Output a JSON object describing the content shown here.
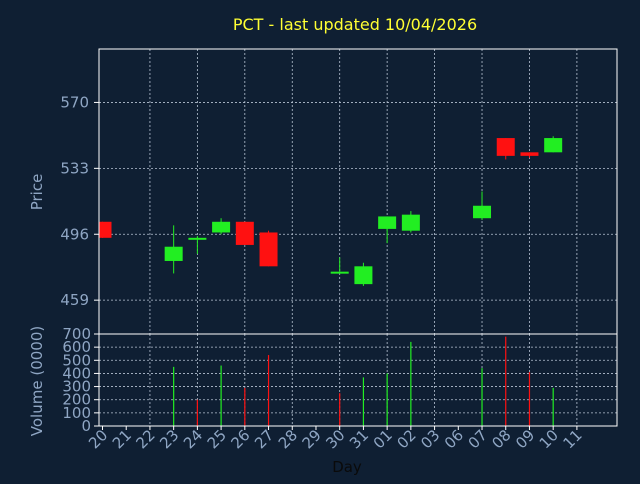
{
  "colors": {
    "background": "#0f1f33",
    "axis": "#ffffff",
    "grid": "#b8c4d4",
    "title": "#ffff33",
    "label": "#8fa6c4",
    "up": "#22ee22",
    "down": "#ff1111"
  },
  "chart_data": [
    {
      "type": "candlestick",
      "title": "PCT - last updated 10/04/2026",
      "ylabel": "Price",
      "ylim": [
        440,
        600
      ],
      "yticks": [
        459,
        496,
        533,
        570
      ],
      "grid": true,
      "categories": [
        "20",
        "21",
        "22",
        "23",
        "24",
        "25",
        "26",
        "27",
        "28",
        "29",
        "30",
        "31",
        "01",
        "02",
        "03",
        "06",
        "07",
        "08",
        "09",
        "10",
        "11"
      ],
      "candles": [
        {
          "x": "20",
          "open": 503,
          "high": 503,
          "low": 494,
          "close": 494
        },
        {
          "x": "23",
          "open": 481,
          "high": 501,
          "low": 474,
          "close": 489
        },
        {
          "x": "24",
          "open": 494,
          "high": 495,
          "low": 485,
          "close": 494
        },
        {
          "x": "25",
          "open": 497,
          "high": 505,
          "low": 496,
          "close": 503
        },
        {
          "x": "26",
          "open": 503,
          "high": 503,
          "low": 490,
          "close": 490
        },
        {
          "x": "27",
          "open": 497,
          "high": 498,
          "low": 478,
          "close": 478
        },
        {
          "x": "30",
          "open": 475,
          "high": 483,
          "low": 475,
          "close": 475
        },
        {
          "x": "31",
          "open": 468,
          "high": 480,
          "low": 467,
          "close": 478
        },
        {
          "x": "01",
          "open": 499,
          "high": 506,
          "low": 491,
          "close": 506
        },
        {
          "x": "02",
          "open": 498,
          "high": 509,
          "low": 497,
          "close": 507
        },
        {
          "x": "07",
          "open": 505,
          "high": 520,
          "low": 504,
          "close": 512
        },
        {
          "x": "08",
          "open": 550,
          "high": 550,
          "low": 538,
          "close": 540
        },
        {
          "x": "09",
          "open": 542,
          "high": 542,
          "low": 539,
          "close": 540
        },
        {
          "x": "10",
          "open": 542,
          "high": 551,
          "low": 542,
          "close": 550
        }
      ]
    },
    {
      "type": "bar",
      "ylabel": "Volume (0000)",
      "xlabel": "Day",
      "ylim": [
        0,
        700
      ],
      "yticks": [
        0,
        100,
        200,
        300,
        400,
        500,
        600,
        700
      ],
      "grid": true,
      "categories": [
        "20",
        "21",
        "22",
        "23",
        "24",
        "25",
        "26",
        "27",
        "28",
        "29",
        "30",
        "31",
        "01",
        "02",
        "03",
        "06",
        "07",
        "08",
        "09",
        "10",
        "11"
      ],
      "bars": [
        {
          "x": "23",
          "value": 450,
          "direction": "up"
        },
        {
          "x": "24",
          "value": 200,
          "direction": "down"
        },
        {
          "x": "25",
          "value": 460,
          "direction": "up"
        },
        {
          "x": "26",
          "value": 290,
          "direction": "down"
        },
        {
          "x": "27",
          "value": 540,
          "direction": "down"
        },
        {
          "x": "30",
          "value": 250,
          "direction": "down"
        },
        {
          "x": "31",
          "value": 370,
          "direction": "up"
        },
        {
          "x": "01",
          "value": 400,
          "direction": "up"
        },
        {
          "x": "02",
          "value": 640,
          "direction": "up"
        },
        {
          "x": "07",
          "value": 440,
          "direction": "up"
        },
        {
          "x": "08",
          "value": 680,
          "direction": "down"
        },
        {
          "x": "09",
          "value": 410,
          "direction": "down"
        },
        {
          "x": "10",
          "value": 290,
          "direction": "up"
        }
      ]
    }
  ]
}
